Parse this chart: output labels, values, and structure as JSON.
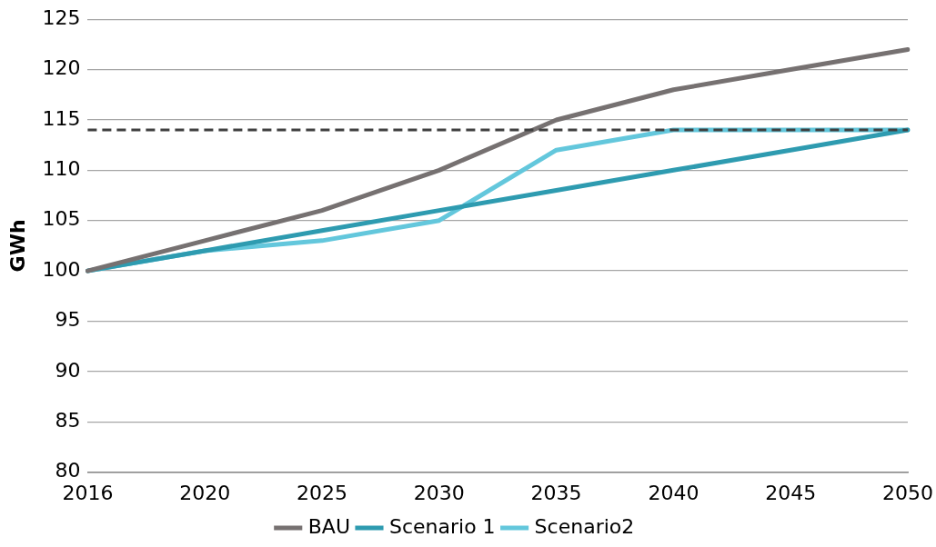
{
  "chart_data": {
    "type": "line",
    "ylabel": "GWh",
    "categories": [
      "2016",
      "2020",
      "2025",
      "2030",
      "2035",
      "2040",
      "2045",
      "2050"
    ],
    "series": [
      {
        "name": "BAU",
        "color": "#767171",
        "values": [
          100,
          103,
          106,
          110,
          115,
          118,
          120,
          122
        ]
      },
      {
        "name": "Scenario 1",
        "color": "#2e9bb0",
        "values": [
          100,
          102,
          104,
          106,
          108,
          110,
          112,
          114
        ]
      },
      {
        "name": "Scenario2",
        "color": "#63c7dc",
        "values": [
          100,
          102,
          103,
          105,
          112,
          114,
          114,
          114
        ]
      }
    ],
    "ylim": [
      80,
      125
    ],
    "yticks": [
      80,
      85,
      90,
      95,
      100,
      105,
      110,
      115,
      120,
      125
    ],
    "grid": "y",
    "legend": "bottom",
    "marker": "none",
    "line_style": "solid",
    "ref_lines": [
      {
        "axis": "y",
        "value": 114,
        "color": "#404040",
        "line_style": "dashed"
      }
    ]
  }
}
